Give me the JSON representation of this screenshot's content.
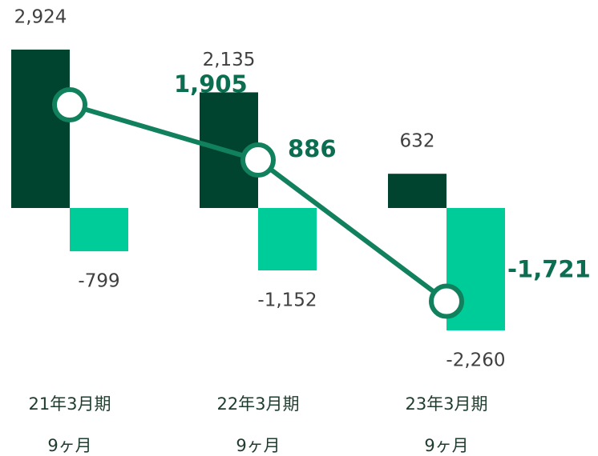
{
  "chart_data": {
    "type": "bar-line",
    "categories": [
      [
        "21年3月期",
        "9ヶ月"
      ],
      [
        "22年3月期",
        "9ヶ月"
      ],
      [
        "23年3月期",
        "9ヶ月"
      ]
    ],
    "series": [
      {
        "color": "#00432f",
        "values": [
          2924,
          2135,
          632
        ],
        "value_labels": [
          "2,924",
          "2,135",
          "632"
        ]
      },
      {
        "color": "#00cc99",
        "values": [
          -799,
          -1152,
          -2260
        ],
        "value_labels": [
          "-799",
          "-1,152",
          "-2,260"
        ]
      },
      {
        "type": "line",
        "color": "#11805d",
        "values": [
          1905,
          886,
          -1721
        ],
        "value_labels": [
          "1,905",
          "886",
          "-1,721"
        ]
      }
    ]
  }
}
